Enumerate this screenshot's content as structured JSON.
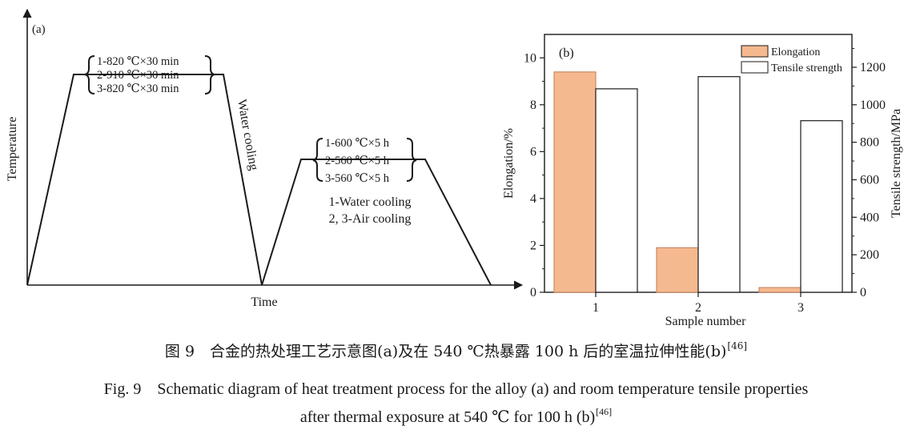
{
  "panel_a": {
    "label": "(a)",
    "y_axis_label": "Temperature",
    "x_axis_label": "Time",
    "stage1_conditions": [
      "1-820 ℃×30 min",
      "2-910 ℃×30 min",
      "3-820 ℃×30 min"
    ],
    "stage1_cooling": "Water cooling",
    "stage2_conditions": [
      "1-600 ℃×5 h",
      "2-560 ℃×5 h",
      "3-560 ℃×5 h"
    ],
    "stage2_cooling": [
      "1-Water cooling",
      "2, 3-Air cooling"
    ]
  },
  "chart_data": [
    {
      "type": "bar",
      "panel": "(b)",
      "categories": [
        "1",
        "2",
        "3"
      ],
      "xlabel": "Sample number",
      "ylabel_left": "Elongation/%",
      "ylabel_right": "Tensile strength/MPa",
      "ylim_left": [
        0,
        11
      ],
      "ylim_right": [
        0,
        1375
      ],
      "yticks_left": [
        0,
        2,
        4,
        6,
        8,
        10
      ],
      "yticks_right": [
        0,
        200,
        400,
        600,
        800,
        1000,
        1200
      ],
      "legend_position": "top-right",
      "series": [
        {
          "name": "Elongation",
          "axis": "left",
          "color": "#f5b98f",
          "values": [
            9.4,
            1.9,
            0.2
          ]
        },
        {
          "name": "Tensile strength",
          "axis": "right",
          "color": "#ffffff",
          "values": [
            1085,
            1150,
            915
          ]
        }
      ]
    }
  ],
  "captions": {
    "zh_text": "图 9　合金的热处理工艺示意图(a)及在 540 ℃热暴露 100 h 后的室温拉伸性能(b)",
    "zh_ref": "[46]",
    "en_line1": "Fig. 9　Schematic diagram of heat treatment process for the alloy (a) and room temperature tensile properties",
    "en_line2_text": "after thermal exposure at 540 ℃ for 100 h (b)",
    "en_line2_ref": "[46]"
  }
}
